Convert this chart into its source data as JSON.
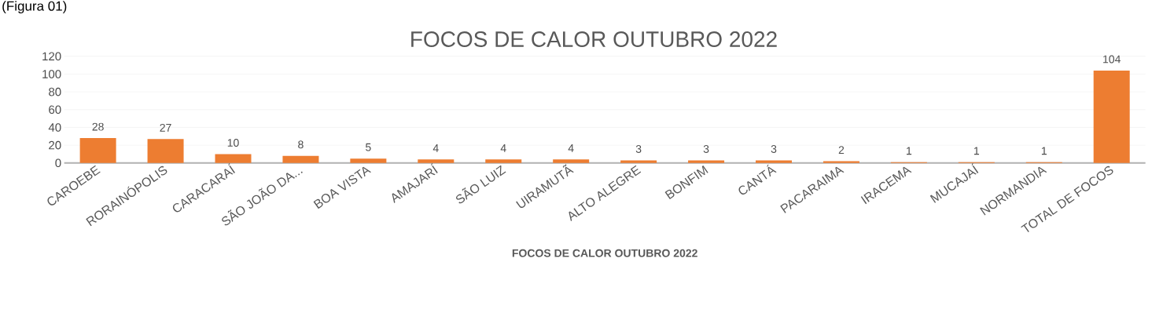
{
  "chart_data": {
    "type": "bar",
    "title": "FOCOS DE CALOR OUTUBRO 2022",
    "xlabel": "FOCOS DE CALOR OUTUBRO 2022",
    "categories": [
      "CAROEBE",
      "RORAINÓPOLIS",
      "CARACARAÍ",
      "SÃO JOÃO DA...",
      "BOA VISTA",
      "AMAJARÍ",
      "SÃO LUIZ",
      "UIRAMUTÃ",
      "ALTO ALEGRE",
      "BONFIM",
      "CANTÁ",
      "PACARAIMA",
      "IRACEMA",
      "MUCAJAÍ",
      "NORMANDIA",
      "TOTAL DE FOCOS"
    ],
    "values": [
      28,
      27,
      10,
      8,
      5,
      4,
      4,
      4,
      3,
      3,
      3,
      2,
      1,
      1,
      1,
      104
    ],
    "color": "#ed7d31",
    "ylim": [
      0,
      120
    ],
    "yticks": [
      0,
      20,
      40,
      60,
      80,
      100,
      120
    ],
    "grid": "y",
    "data_labels": true,
    "annotations": [
      "(Figura 01)"
    ]
  }
}
